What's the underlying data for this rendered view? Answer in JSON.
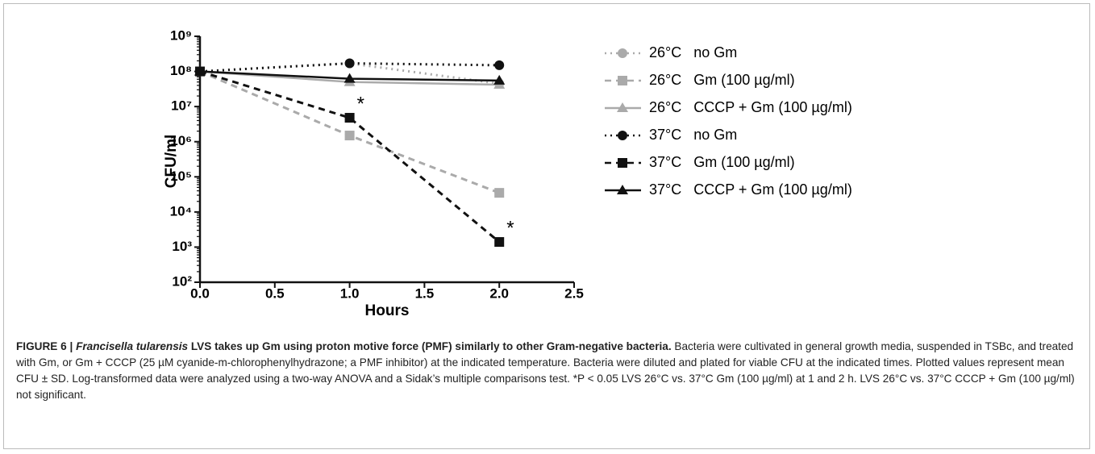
{
  "chart_data": {
    "type": "line",
    "y_label": "CFU/ml",
    "x_label": "Hours",
    "log_y": true,
    "x": [
      0,
      1,
      2
    ],
    "xlim": [
      0,
      2.5
    ],
    "xticks": [
      {
        "value": 0,
        "label": "0.0"
      },
      {
        "value": 0.5,
        "label": "0.5"
      },
      {
        "value": 1,
        "label": "1.0"
      },
      {
        "value": 1.5,
        "label": "1.5"
      },
      {
        "value": 2,
        "label": "2.0"
      },
      {
        "value": 2.5,
        "label": "2.5"
      }
    ],
    "ylim": [
      100,
      1000000000
    ],
    "yticks": [
      {
        "value": 100,
        "label": "10²"
      },
      {
        "value": 1000,
        "label": "10³"
      },
      {
        "value": 10000,
        "label": "10⁴"
      },
      {
        "value": 100000,
        "label": "10⁵"
      },
      {
        "value": 1000000,
        "label": "10⁶"
      },
      {
        "value": 10000000,
        "label": "10⁷"
      },
      {
        "value": 100000000,
        "label": "10⁸"
      },
      {
        "value": 1000000000,
        "label": "10⁹"
      }
    ],
    "series": [
      {
        "name": "26°C   no Gm",
        "color": "#aaaaaa",
        "marker": "circle",
        "line_style": "dotted",
        "values": [
          100000000,
          170000000,
          45000000
        ]
      },
      {
        "name": "26°C   Gm (100 µg/ml)",
        "color": "#aaaaaa",
        "marker": "square",
        "line_style": "dashed",
        "values": [
          100000000,
          1500000,
          35000
        ]
      },
      {
        "name": "26°C   CCCP + Gm (100 µg/ml)",
        "color": "#aaaaaa",
        "marker": "triangle",
        "line_style": "solid",
        "values": [
          100000000,
          50000000,
          42000000
        ]
      },
      {
        "name": "37°C   no Gm",
        "color": "#111111",
        "marker": "circle",
        "line_style": "dotted",
        "values": [
          100000000,
          170000000,
          150000000
        ]
      },
      {
        "name": "37°C   Gm (100 µg/ml)",
        "color": "#111111",
        "marker": "square",
        "line_style": "dashed",
        "values": [
          100000000,
          4800000,
          1400
        ]
      },
      {
        "name": "37°C   CCCP + Gm (100 µg/ml)",
        "color": "#111111",
        "marker": "triangle",
        "line_style": "solid",
        "values": [
          100000000,
          62000000,
          55000000
        ]
      }
    ],
    "annotations": [
      "*",
      "*"
    ]
  },
  "caption": {
    "label": "FIGURE 6 | ",
    "title_italic": "Francisella tularensis",
    "title_rest": " LVS takes up Gm using proton motive force (PMF) similarly to other Gram-negative bacteria.",
    "body": " Bacteria were cultivated in general growth media, suspended in TSBc, and treated with Gm, or Gm + CCCP (25 µM cyanide-m-chlorophenylhydrazone; a PMF inhibitor) at the indicated temperature. Bacteria were diluted and plated for viable CFU at the indicated times. Plotted values represent mean CFU ± SD. Log-transformed data were analyzed using a two-way ANOVA and a Sidak’s multiple comparisons test. *P < 0.05 LVS 26°C vs. 37°C Gm (100 µg/ml) at 1 and 2 h. LVS 26°C vs. 37°C CCCP + Gm (100 µg/ml) not significant."
  }
}
